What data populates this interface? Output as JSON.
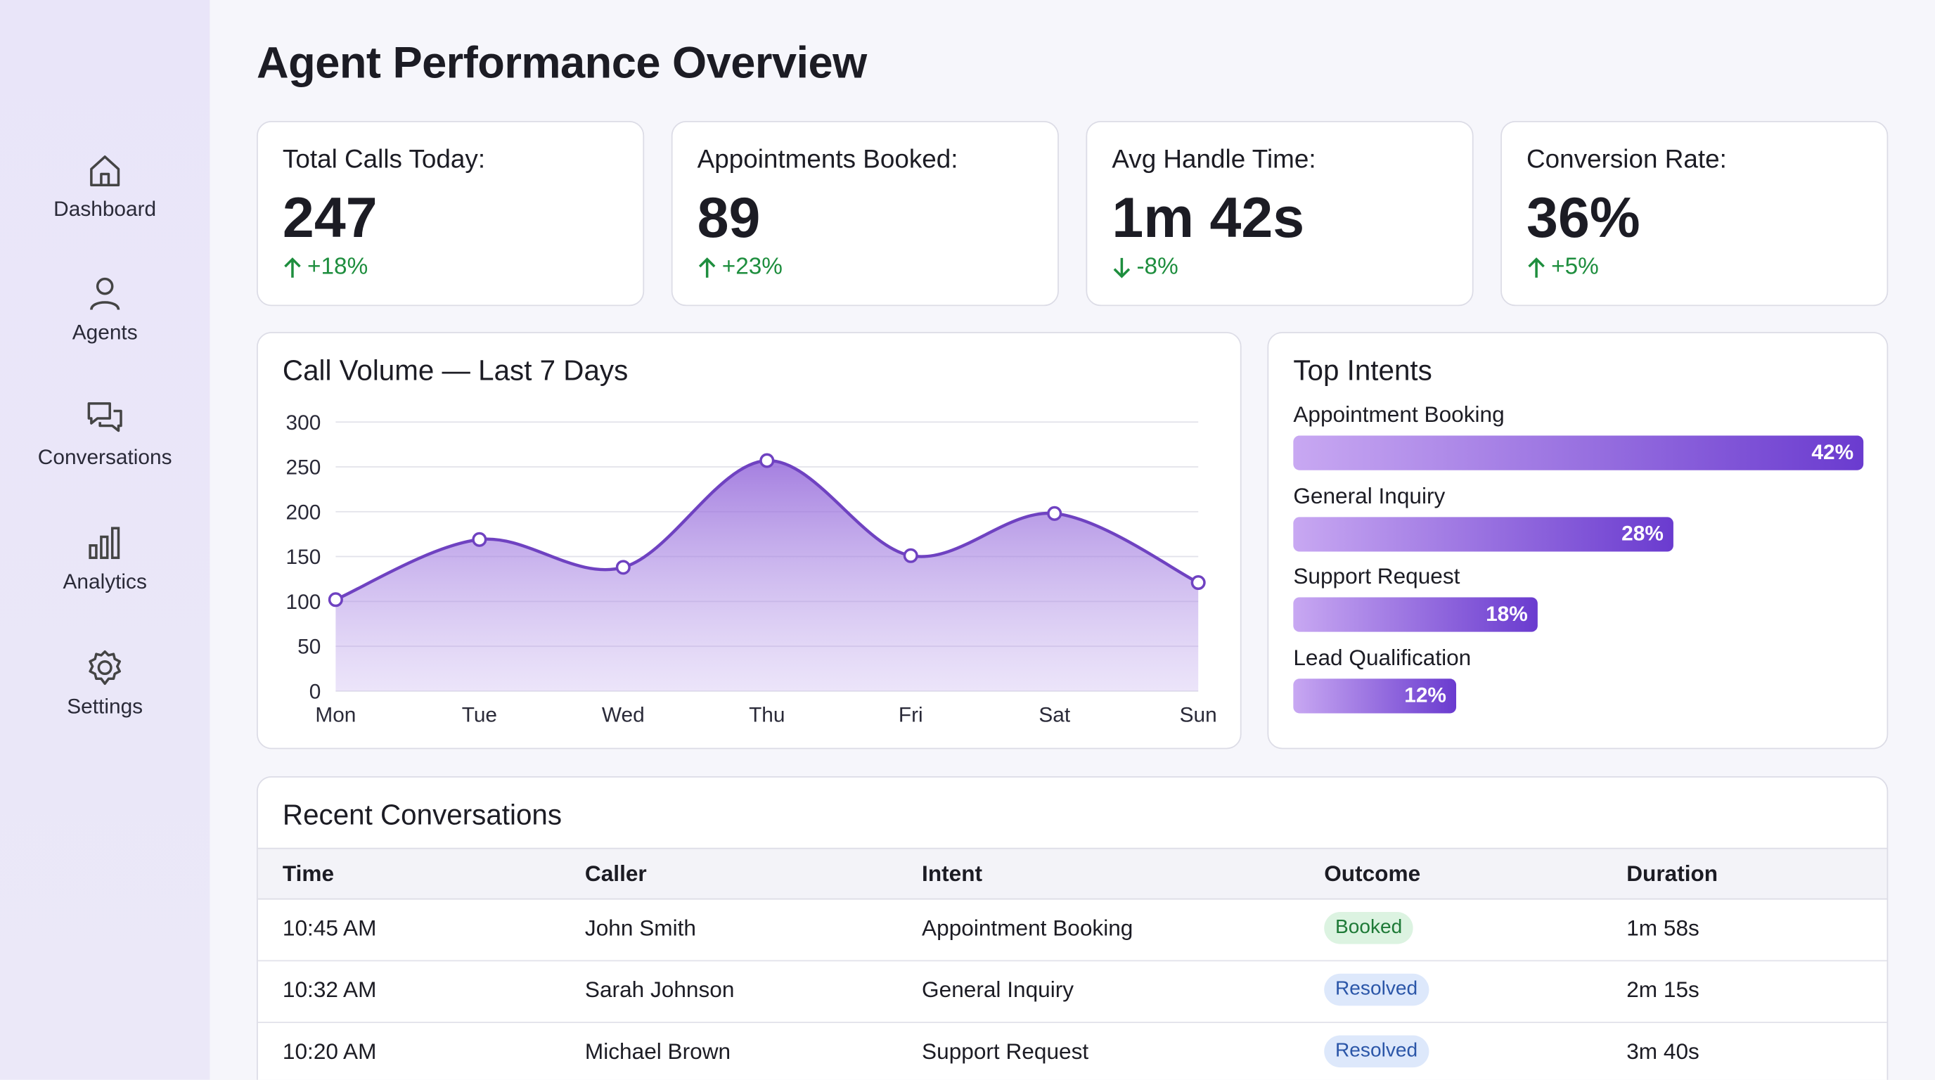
{
  "sidebar": {
    "items": [
      "Dashboard",
      "Agents",
      "Conversations",
      "Analytics",
      "Settings"
    ]
  },
  "header": {
    "title": "Agent Performance Overview"
  },
  "kpis": [
    {
      "label": "Total Calls Today:",
      "value": 247,
      "change": "+18%",
      "trend": "up"
    },
    {
      "label": "Appointments Booked:",
      "value": 89,
      "change": "+23%",
      "trend": "up"
    },
    {
      "label": "Avg Handle Time:",
      "value": "1m 42s",
      "change": "-8%",
      "trend": "down"
    },
    {
      "label": "Conversion Rate:",
      "value": "36%",
      "change": "+5%",
      "trend": "up"
    }
  ],
  "chart_data": {
    "type": "line",
    "title": "Call Volume — Last 7 Days",
    "categories": [
      "Mon",
      "Tue",
      "Wed",
      "Thu",
      "Fri",
      "Sat",
      "Sun"
    ],
    "values": [
      102,
      169,
      138,
      257,
      151,
      198,
      121
    ],
    "color": "#6f42c1",
    "ylim": [
      0,
      300
    ],
    "yticks": [
      0,
      50,
      100,
      150,
      200,
      250,
      300
    ],
    "grid": true
  },
  "top_intents": {
    "title": "Top Intents",
    "categories": [
      "Appointment Booking",
      "General Inquiry",
      "Support Request",
      "Lead Qualification"
    ],
    "values": [
      42,
      28,
      18,
      12
    ],
    "value_labels": [
      "42%",
      "28%",
      "18%",
      "12%"
    ]
  },
  "table": {
    "title": "Recent Conversations",
    "columns": [
      "Time",
      "Caller",
      "Intent",
      "Outcome",
      "Duration"
    ],
    "rows": [
      [
        "10:45 AM",
        "John Smith",
        "Appointment Booking",
        "Booked",
        "1m 58s"
      ],
      [
        "10:32 AM",
        "Sarah Johnson",
        "General Inquiry",
        "Resolved",
        "2m 15s"
      ],
      [
        "10:20 AM",
        "Michael Brown",
        "Support Request",
        "Resolved",
        "3m 40s"
      ]
    ],
    "outcome_colors": [
      "green",
      "blue",
      "blue"
    ]
  }
}
